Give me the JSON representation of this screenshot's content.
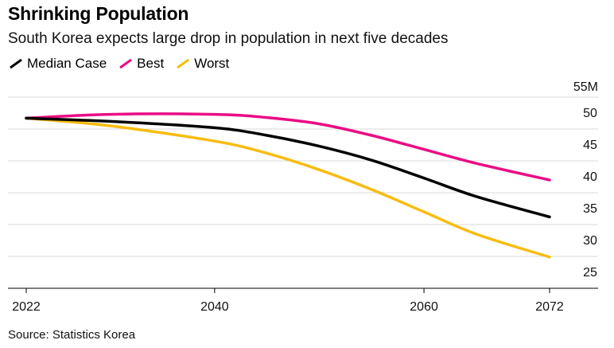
{
  "header": {
    "title": "Shrinking Population",
    "subtitle": "South Korea expects large drop in population in next five decades"
  },
  "footer": {
    "source": "Source: Statistics Korea"
  },
  "chart_data": {
    "type": "line",
    "x": [
      2022,
      2030,
      2040,
      2045,
      2050,
      2055,
      2060,
      2065,
      2072
    ],
    "series": [
      {
        "name": "Median Case",
        "color": "#000000",
        "values": [
          51.7,
          51.2,
          50.2,
          49.0,
          47.3,
          45.1,
          42.3,
          39.4,
          36.2
        ]
      },
      {
        "name": "Best",
        "color": "#ea0d84",
        "values": [
          51.7,
          52.3,
          52.3,
          51.8,
          50.8,
          49.0,
          46.8,
          44.6,
          42.0
        ]
      },
      {
        "name": "Worst",
        "color": "#f7bc11",
        "values": [
          51.7,
          50.5,
          48.1,
          46.2,
          43.6,
          40.5,
          37.0,
          33.5,
          29.9
        ]
      }
    ],
    "x_ticks": [
      2022,
      2040,
      2060,
      2072
    ],
    "y_ticks": [
      25,
      30,
      35,
      40,
      45,
      50
    ],
    "y_unit_label": "55M",
    "xlim": [
      2022,
      2072
    ],
    "ylim": [
      25,
      55
    ],
    "grid": true,
    "legend_position": "top-left",
    "y_axis_side": "right"
  }
}
